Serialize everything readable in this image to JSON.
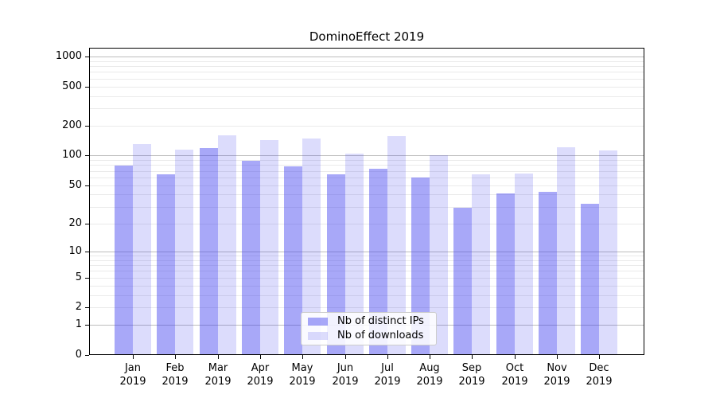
{
  "chart_data": {
    "type": "bar",
    "title": "DominoEffect 2019",
    "categories": [
      "Jan",
      "Feb",
      "Mar",
      "Apr",
      "May",
      "Jun",
      "Jul",
      "Aug",
      "Sep",
      "Oct",
      "Nov",
      "Dec"
    ],
    "x_tick_second_line": "2019",
    "series": [
      {
        "name": "Nb of distinct IPs",
        "color": "rgba(62,62,239,0.45)",
        "solid_color": "#a9a9f7",
        "values": [
          79,
          65,
          119,
          88,
          78,
          64,
          73,
          60,
          29,
          41,
          43,
          32
        ]
      },
      {
        "name": "Nb of downloads",
        "color": "rgba(62,62,239,0.18)",
        "solid_color": "#dcdcfa",
        "values": [
          130,
          114,
          160,
          143,
          150,
          105,
          157,
          100,
          64,
          66,
          121,
          112
        ]
      }
    ],
    "yscale": "log1p",
    "ylim": [
      0,
      1224
    ],
    "y_tick_values": [
      0,
      1,
      2,
      5,
      10,
      20,
      50,
      100,
      200,
      500,
      1000
    ],
    "y_tick_labels": [
      "0",
      "1",
      "2",
      "5",
      "10",
      "20",
      "50",
      "100",
      "200",
      "500",
      "1000"
    ],
    "y_major_gridlines": [
      1,
      10,
      100,
      1000
    ],
    "y_minor_gridlines": [
      2,
      3,
      4,
      5,
      6,
      7,
      8,
      9,
      20,
      30,
      40,
      50,
      60,
      70,
      80,
      90,
      200,
      300,
      400,
      500,
      600,
      700,
      800,
      900
    ],
    "grid": true,
    "legend_entries": [
      "Nb of distinct IPs",
      "Nb of downloads"
    ],
    "legend_position": "lower center"
  },
  "colors": {
    "background": "#ffffff",
    "axis": "#000000",
    "grid_major": "#bdbdbd",
    "grid_minor": "#eaeaea",
    "legend_border": "#cccccc"
  }
}
